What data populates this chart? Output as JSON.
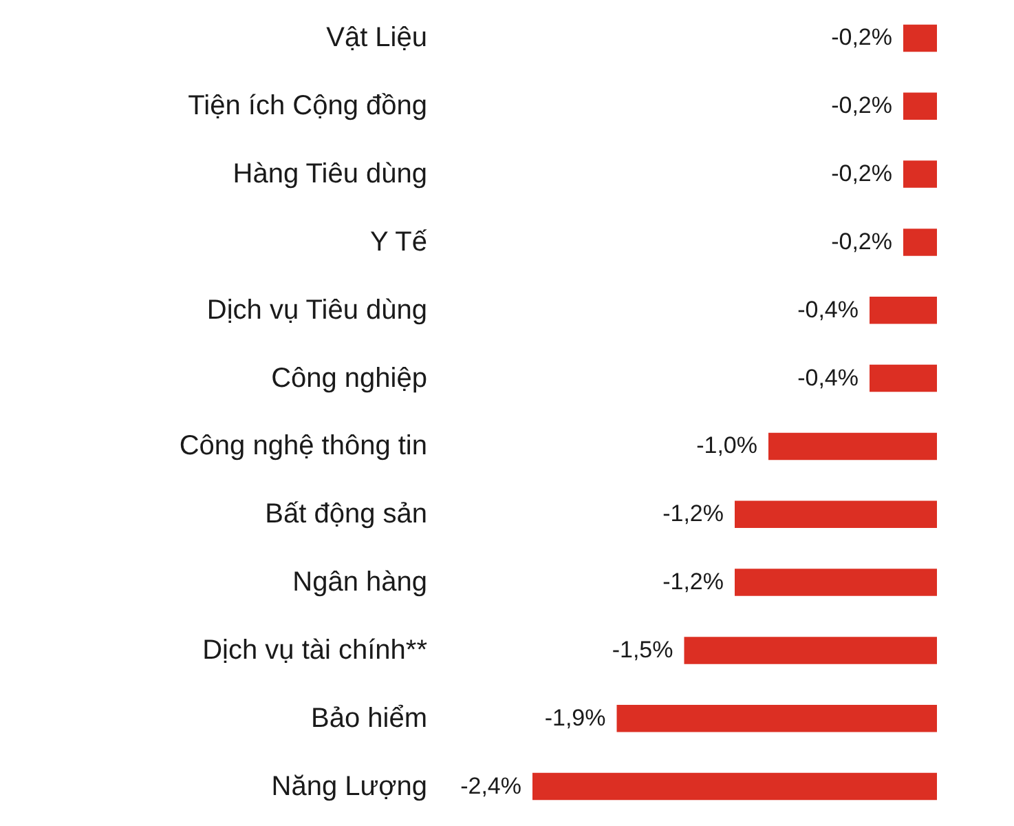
{
  "chart_data": {
    "type": "bar",
    "orientation": "horizontal",
    "categories": [
      "Vật Liệu",
      "Tiện ích Cộng đồng",
      "Hàng Tiêu dùng",
      "Y Tế",
      "Dịch vụ Tiêu dùng",
      "Công nghiệp",
      "Công nghệ thông tin",
      "Bất động sản",
      "Ngân hàng",
      "Dịch vụ tài chính**",
      "Bảo hiểm",
      "Năng Lượng"
    ],
    "values": [
      -0.2,
      -0.2,
      -0.2,
      -0.2,
      -0.4,
      -0.4,
      -1.0,
      -1.2,
      -1.2,
      -1.5,
      -1.9,
      -2.4
    ],
    "value_labels": [
      "-0,2%",
      "-0,2%",
      "-0,2%",
      "-0,2%",
      "-0,4%",
      "-0,4%",
      "-1,0%",
      "-1,2%",
      "-1,2%",
      "-1,5%",
      "-1,9%",
      "-2,4%"
    ],
    "color": "#dc2f23",
    "xlim": [
      -2.4,
      0
    ],
    "tick_labels": "y"
  }
}
